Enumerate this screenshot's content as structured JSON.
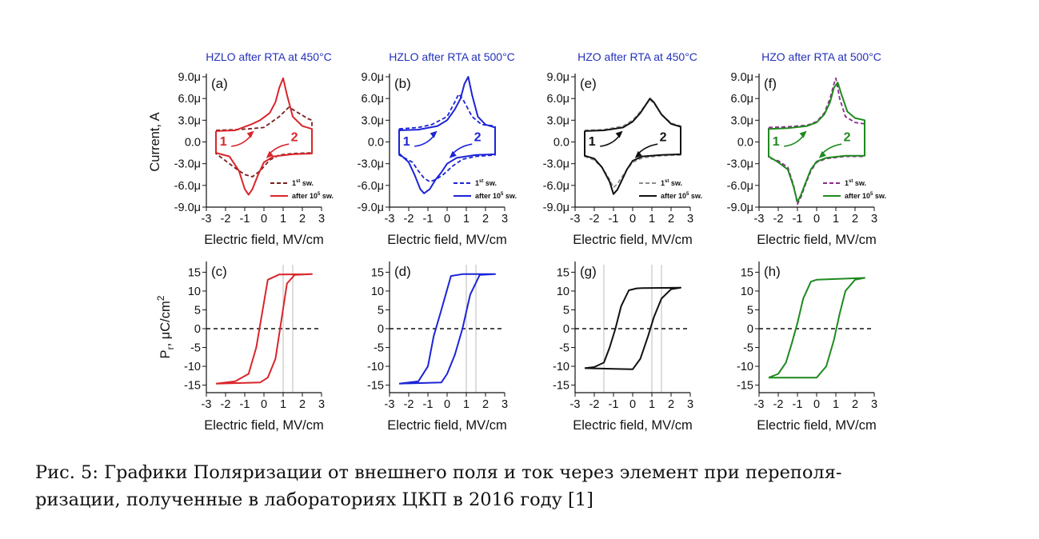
{
  "caption": {
    "line1": "Рис. 5: Графики Поляризации от внешнего поля и ток через элемент при переполя-",
    "line2": "ризации, полученные в лабораториях ЦКП в 2016 году [1]"
  },
  "axis_labels": {
    "x": "Electric field, MV/cm",
    "current_y": "Current, A",
    "polar_y": "P",
    "polar_y_sub": "r",
    "polar_y_rest": ", μC/cm",
    "polar_y_sup": "2"
  },
  "colors": {
    "red": "#d9252b",
    "blue": "#1c24d6",
    "black": "#111111",
    "green": "#1f8a1f",
    "purple": "#8a2a8a",
    "gray": "#8c8c8c",
    "title": "#2431b8"
  },
  "chart_data": [
    {
      "type": "line",
      "panel": "(a)",
      "title": "HZLO after RTA at  450°C",
      "xlabel": "Electric field, MV/cm",
      "ylabel": "Current, A",
      "xlim": [
        -3,
        3
      ],
      "xticks": [
        -3,
        -2,
        -1,
        0,
        1,
        2,
        3
      ],
      "ylim": [
        -9,
        9
      ],
      "yticks": [
        "9.0μ",
        "6.0μ",
        "3.0μ",
        "0.0",
        "-3.0μ",
        "-6.0μ",
        "-9.0μ"
      ],
      "color": "red",
      "firstColor": "dark",
      "legend": {
        "first": "1",
        "first_sup": "st",
        "first_rest": " sw.",
        "after": "after 10",
        "after_sup": "5",
        "after_rest": " sw."
      },
      "arrows": {
        "label1": "1",
        "label2": "2"
      },
      "series": [
        {
          "name": "1st sw.",
          "dashed": true,
          "x": [
            -2.5,
            -1.5,
            -0.8,
            0,
            0.8,
            1.3,
            1.8,
            2.3,
            2.5,
            2.5,
            1.5,
            0.8,
            0.3,
            -0.2,
            -0.6,
            -1.0,
            -1.4,
            -1.8,
            -2.3,
            -2.5,
            -2.5
          ],
          "y": [
            1.6,
            1.7,
            1.8,
            2.0,
            3.5,
            4.8,
            4.0,
            3.2,
            3.0,
            -1.5,
            -1.6,
            -1.8,
            -2.5,
            -4.0,
            -4.8,
            -4.5,
            -3.8,
            -3.0,
            -2.0,
            -1.6,
            1.6
          ]
        },
        {
          "name": "after 10^5 sw.",
          "dashed": false,
          "x": [
            -2.5,
            -1.5,
            -0.6,
            -0.2,
            0.3,
            0.6,
            0.8,
            1.0,
            1.2,
            1.5,
            2.0,
            2.5,
            2.5,
            1.5,
            0.5,
            0,
            -0.3,
            -0.6,
            -0.8,
            -1.0,
            -1.3,
            -1.8,
            -2.5,
            -2.5
          ],
          "y": [
            1.5,
            1.6,
            2.5,
            3.0,
            4.0,
            5.5,
            7.5,
            8.8,
            6.5,
            3.5,
            2.2,
            1.8,
            -1.6,
            -1.7,
            -2.0,
            -2.8,
            -4.5,
            -6.5,
            -7.3,
            -6.5,
            -4.0,
            -2.0,
            -1.5,
            1.5
          ]
        }
      ]
    },
    {
      "type": "line",
      "panel": "(b)",
      "title": "HZLO after RTA at  500°C",
      "xlabel": "Electric field, MV/cm",
      "ylabel": "",
      "xlim": [
        -3,
        3
      ],
      "xticks": [
        -3,
        -2,
        -1,
        0,
        1,
        2,
        3
      ],
      "ylim": [
        -9,
        9
      ],
      "yticks": [
        "9.0μ",
        "6.0μ",
        "3.0μ",
        "0.0",
        "-3.0μ",
        "-6.0μ",
        "-9.0μ"
      ],
      "color": "blue",
      "firstColor": "blue",
      "legend": {
        "first": "1",
        "first_sup": "st",
        "first_rest": " sw.",
        "after": "after 10",
        "after_sup": "5",
        "after_rest": " sw."
      },
      "arrows": {
        "label1": "1",
        "label2": "2"
      },
      "series": [
        {
          "name": "1st sw.",
          "dashed": true,
          "x": [
            -2.5,
            -1.5,
            -0.8,
            0,
            0.4,
            0.6,
            0.8,
            1.0,
            1.3,
            1.8,
            2.5,
            2.5,
            1.5,
            0.8,
            0.3,
            -0.2,
            -0.6,
            -0.9,
            -1.2,
            -1.5,
            -1.8,
            -2.5,
            -2.5
          ],
          "y": [
            1.8,
            2.0,
            2.4,
            3.5,
            5.5,
            6.6,
            6.0,
            5.0,
            3.5,
            2.4,
            2.2,
            -1.8,
            -2.0,
            -2.4,
            -3.3,
            -4.5,
            -5.2,
            -5.5,
            -5.0,
            -4.0,
            -2.8,
            -1.8,
            1.8
          ]
        },
        {
          "name": "after 10^5 sw.",
          "dashed": false,
          "x": [
            -2.5,
            -1.5,
            -0.5,
            0,
            0.4,
            0.7,
            0.9,
            1.1,
            1.3,
            1.6,
            2.0,
            2.5,
            2.5,
            1.5,
            0.5,
            0,
            -0.3,
            -0.6,
            -0.9,
            -1.2,
            -1.4,
            -1.7,
            -2.0,
            -2.5,
            -2.5
          ],
          "y": [
            1.6,
            1.7,
            2.2,
            3.0,
            4.5,
            6.0,
            8.0,
            9.0,
            6.5,
            3.5,
            2.4,
            2.0,
            -1.7,
            -1.8,
            -2.2,
            -3.0,
            -4.2,
            -5.2,
            -6.5,
            -7.1,
            -6.5,
            -4.5,
            -2.8,
            -1.6,
            1.6
          ]
        }
      ]
    },
    {
      "type": "line",
      "panel": "(e)",
      "title": "HZO after RTA at  450°C",
      "xlabel": "Electric field, MV/cm",
      "ylabel": "",
      "xlim": [
        -3,
        3
      ],
      "xticks": [
        -3,
        -2,
        -1,
        0,
        1,
        2,
        3
      ],
      "ylim": [
        -9,
        9
      ],
      "yticks": [
        "9.0μ",
        "6.0μ",
        "3.0μ",
        "0.0",
        "-3.0μ",
        "-6.0μ",
        "-9.0μ"
      ],
      "color": "black",
      "firstColor": "gray",
      "legend": {
        "first": "1",
        "first_sup": "st",
        "first_rest": " sw.",
        "after": "after 10",
        "after_sup": "5",
        "after_rest": " sw."
      },
      "arrows": {
        "label1": "1",
        "label2": "2"
      },
      "series": [
        {
          "name": "1st sw.",
          "dashed": true,
          "x": [
            -2.5,
            -1.5,
            -0.5,
            0,
            0.4,
            0.7,
            0.9,
            1.1,
            1.5,
            2.0,
            2.5,
            2.5,
            1.5,
            0.5,
            0,
            -0.3,
            -0.6,
            -0.8,
            -1.0,
            -1.2,
            -1.6,
            -2.0,
            -2.5,
            -2.5
          ],
          "y": [
            1.6,
            1.7,
            2.2,
            3.0,
            4.2,
            5.2,
            5.8,
            5.4,
            3.8,
            2.6,
            2.2,
            -1.8,
            -1.9,
            -2.2,
            -2.8,
            -3.8,
            -5.0,
            -5.8,
            -6.3,
            -5.2,
            -3.5,
            -2.5,
            -2.0,
            1.6
          ]
        },
        {
          "name": "after 10^5 sw.",
          "dashed": false,
          "x": [
            -2.5,
            -1.5,
            -0.5,
            0,
            0.4,
            0.7,
            0.9,
            1.1,
            1.5,
            2.0,
            2.5,
            2.5,
            1.5,
            0.5,
            0,
            -0.3,
            -0.6,
            -0.8,
            -1.0,
            -1.2,
            -1.6,
            -2.0,
            -2.5,
            -2.5
          ],
          "y": [
            1.5,
            1.6,
            2.0,
            2.8,
            4.0,
            5.2,
            6.0,
            5.5,
            3.8,
            2.5,
            2.1,
            -1.7,
            -1.8,
            -2.0,
            -2.6,
            -3.8,
            -5.5,
            -6.6,
            -7.2,
            -5.5,
            -3.5,
            -2.3,
            -1.9,
            1.5
          ]
        }
      ]
    },
    {
      "type": "line",
      "panel": "(f)",
      "title": "HZO after RTA at  500°C",
      "xlabel": "Electric field, MV/cm",
      "ylabel": "",
      "xlim": [
        -3,
        3
      ],
      "xticks": [
        -3,
        -2,
        -1,
        0,
        1,
        2,
        3
      ],
      "ylim": [
        -9,
        9
      ],
      "yticks": [
        "9.0μ",
        "6.0μ",
        "3.0μ",
        "0.0",
        "-3.0μ",
        "-6.0μ",
        "-9.0μ"
      ],
      "color": "green",
      "firstColor": "purple",
      "legend": {
        "first": "1",
        "first_sup": "st",
        "first_rest": " sw.",
        "after": "after 10",
        "after_sup": "5",
        "after_rest": " sw."
      },
      "arrows": {
        "label1": "1",
        "label2": "2"
      },
      "series": [
        {
          "name": "1st sw.",
          "dashed": true,
          "x": [
            -2.5,
            -1.5,
            -0.5,
            0,
            0.4,
            0.7,
            0.9,
            1.0,
            1.2,
            1.5,
            2.0,
            2.5,
            2.5,
            1.5,
            0.5,
            0,
            -0.3,
            -0.6,
            -0.8,
            -1.0,
            -1.2,
            -1.5,
            -2.0,
            -2.5,
            -2.5
          ],
          "y": [
            2.0,
            2.1,
            2.3,
            2.8,
            4.0,
            6.0,
            8.0,
            8.8,
            6.0,
            3.5,
            2.7,
            2.5,
            -2.0,
            -2.0,
            -2.3,
            -2.8,
            -4.0,
            -6.0,
            -7.5,
            -8.6,
            -6.0,
            -3.5,
            -2.6,
            -2.2,
            2.0
          ]
        },
        {
          "name": "after 10^5 sw.",
          "dashed": false,
          "x": [
            -2.5,
            -1.5,
            -0.5,
            0,
            0.4,
            0.7,
            0.9,
            1.1,
            1.3,
            1.6,
            2.0,
            2.5,
            2.5,
            1.5,
            0.5,
            0,
            -0.3,
            -0.6,
            -0.8,
            -1.0,
            -1.2,
            -1.5,
            -2.0,
            -2.5,
            -2.5
          ],
          "y": [
            1.8,
            1.9,
            2.2,
            2.7,
            3.8,
            5.5,
            7.5,
            8.2,
            6.5,
            4.2,
            3.3,
            3.0,
            -1.9,
            -1.9,
            -2.2,
            -2.7,
            -3.8,
            -5.8,
            -7.2,
            -8.3,
            -6.2,
            -3.8,
            -2.8,
            -2.0,
            1.8
          ]
        }
      ]
    },
    {
      "type": "line",
      "panel": "(c)",
      "title": "",
      "xlabel": "Electric field, MV/cm",
      "ylabel": "P_r, μC/cm^2",
      "xlim": [
        -3,
        3
      ],
      "xticks": [
        -3,
        -2,
        -1,
        0,
        1,
        2,
        3
      ],
      "ylim": [
        -17,
        17
      ],
      "yticks": [
        15,
        10,
        5,
        0,
        -5,
        -10,
        -15
      ],
      "color": "red",
      "vlines": [
        1.0,
        1.5
      ],
      "series": [
        {
          "name": "P-E loop",
          "dashed": false,
          "x": [
            -2.5,
            -1.5,
            -0.8,
            -0.4,
            -0.1,
            0.2,
            0.8,
            2.5,
            1.6,
            1.2,
            0.9,
            0.6,
            0.2,
            -0.2,
            -2.5
          ],
          "y": [
            -14.6,
            -14.0,
            -12.0,
            -5.0,
            4.0,
            13.0,
            14.4,
            14.5,
            14.3,
            12.0,
            2.0,
            -8.0,
            -13.0,
            -14.3,
            -14.6
          ]
        }
      ]
    },
    {
      "type": "line",
      "panel": "(d)",
      "title": "",
      "xlabel": "Electric field, MV/cm",
      "ylabel": "",
      "xlim": [
        -3,
        3
      ],
      "xticks": [
        -3,
        -2,
        -1,
        0,
        1,
        2,
        3
      ],
      "ylim": [
        -17,
        17
      ],
      "yticks": [
        15,
        10,
        5,
        0,
        -5,
        -10,
        -15
      ],
      "color": "blue",
      "vlines": [
        1.0,
        1.5
      ],
      "series": [
        {
          "name": "P-E loop",
          "dashed": false,
          "x": [
            -2.5,
            -1.5,
            -1.0,
            -0.7,
            -0.3,
            0.2,
            0.8,
            2.5,
            1.7,
            1.2,
            0.8,
            0.4,
            0.0,
            -0.3,
            -2.5
          ],
          "y": [
            -14.6,
            -14.0,
            -10.0,
            -2.0,
            5.0,
            14.0,
            14.5,
            14.5,
            14.3,
            9.0,
            0.0,
            -7.0,
            -12.0,
            -14.3,
            -14.6
          ]
        }
      ]
    },
    {
      "type": "line",
      "panel": "(g)",
      "title": "",
      "xlabel": "Electric field, MV/cm",
      "ylabel": "",
      "xlim": [
        -3,
        3
      ],
      "xticks": [
        -3,
        -2,
        -1,
        0,
        1,
        2,
        3
      ],
      "ylim": [
        -17,
        17
      ],
      "yticks": [
        15,
        10,
        5,
        0,
        -5,
        -10,
        -15
      ],
      "color": "black",
      "vlines": [
        -1.5,
        1.0,
        1.5
      ],
      "series": [
        {
          "name": "P-E loop",
          "dashed": false,
          "x": [
            -2.5,
            -2.0,
            -1.5,
            -1.2,
            -0.9,
            -0.6,
            -0.2,
            0.2,
            0.5,
            2.5,
            2.0,
            1.5,
            1.1,
            0.8,
            0.4,
            0.0,
            -2.5
          ],
          "y": [
            -10.5,
            -10.2,
            -9.0,
            -5.0,
            0.0,
            6.0,
            10.2,
            10.7,
            10.8,
            10.9,
            10.5,
            8.0,
            3.0,
            -2.0,
            -8.0,
            -10.8,
            -10.5
          ]
        }
      ]
    },
    {
      "type": "line",
      "panel": "(h)",
      "title": "",
      "xlabel": "Electric field, MV/cm",
      "ylabel": "",
      "xlim": [
        -3,
        3
      ],
      "xticks": [
        -3,
        -2,
        -1,
        0,
        1,
        2,
        3
      ],
      "ylim": [
        -17,
        17
      ],
      "yticks": [
        15,
        10,
        5,
        0,
        -5,
        -10,
        -15
      ],
      "color": "green",
      "vlines": [],
      "series": [
        {
          "name": "P-E loop",
          "dashed": false,
          "x": [
            -2.5,
            -2.0,
            -1.6,
            -1.3,
            -1.0,
            -0.7,
            -0.3,
            0.0,
            2.5,
            2.0,
            1.5,
            1.2,
            0.9,
            0.5,
            0.0,
            -2.5
          ],
          "y": [
            -13.0,
            -12.0,
            -9.0,
            -4.0,
            1.5,
            8.0,
            12.5,
            13.0,
            13.5,
            13.0,
            10.0,
            4.0,
            -3.0,
            -10.0,
            -13.0,
            -13.0
          ]
        }
      ]
    }
  ]
}
